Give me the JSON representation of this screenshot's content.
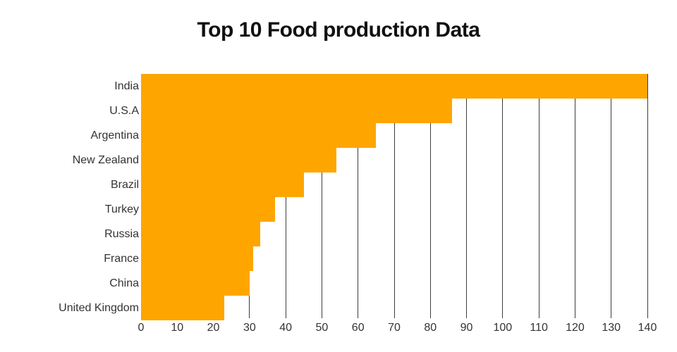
{
  "title": "Top 10 Food production Data",
  "colors": {
    "bar": "#FFA500",
    "grid": "#3d3d3d",
    "text": "#333333",
    "title": "#111111",
    "background": "#ffffff"
  },
  "chart_data": {
    "type": "bar",
    "orientation": "horizontal",
    "title": "Top 10 Food production Data",
    "categories": [
      "India",
      "U.S.A",
      "Argentina",
      "New Zealand",
      "Brazil",
      "Turkey",
      "Russia",
      "France",
      "China",
      "United Kingdom"
    ],
    "values": [
      140,
      86,
      65,
      54,
      45,
      37,
      33,
      31,
      30,
      23
    ],
    "xlabel": "",
    "ylabel": "",
    "xlim": [
      0,
      140
    ],
    "xticks": [
      0,
      10,
      20,
      30,
      40,
      50,
      60,
      70,
      80,
      90,
      100,
      110,
      120,
      130,
      140
    ],
    "grid": "vertical-dark-lines",
    "legend": false,
    "bars_touching": true
  }
}
